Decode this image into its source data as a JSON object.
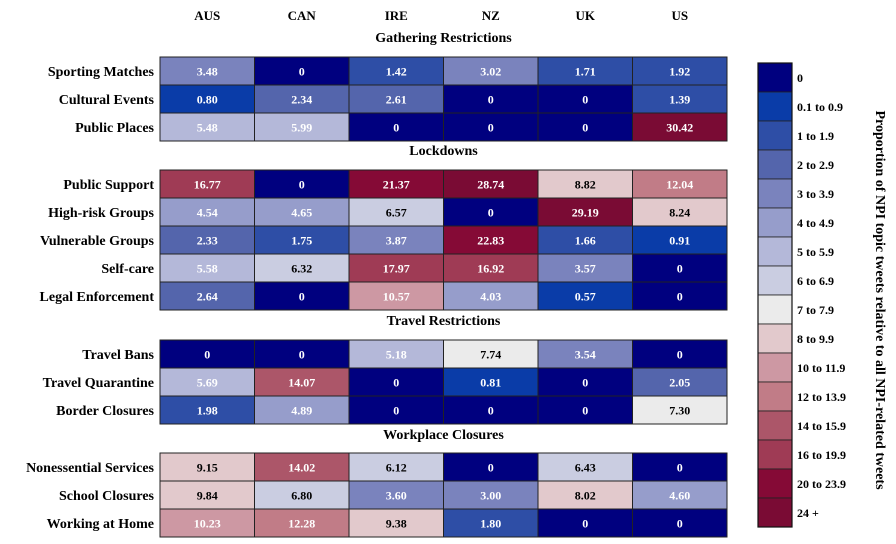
{
  "chart_data": {
    "type": "heatmap",
    "columns": [
      "AUS",
      "CAN",
      "IRE",
      "NZ",
      "UK",
      "US"
    ],
    "groups": [
      {
        "title": "Gathering Restrictions",
        "rows": [
          {
            "label": "Sporting Matches",
            "values": [
              "3.48",
              "0",
              "1.42",
              "3.02",
              "1.71",
              "1.92"
            ]
          },
          {
            "label": "Cultural Events",
            "values": [
              "0.80",
              "2.34",
              "2.61",
              "0",
              "0",
              "1.39"
            ]
          },
          {
            "label": "Public Places",
            "values": [
              "5.48",
              "5.99",
              "0",
              "0",
              "0",
              "30.42"
            ]
          }
        ]
      },
      {
        "title": "Lockdowns",
        "rows": [
          {
            "label": "Public Support",
            "values": [
              "16.77",
              "0",
              "21.37",
              "28.74",
              "8.82",
              "12.04"
            ]
          },
          {
            "label": "High-risk Groups",
            "values": [
              "4.54",
              "4.65",
              "6.57",
              "0",
              "29.19",
              "8.24"
            ]
          },
          {
            "label": "Vulnerable Groups",
            "values": [
              "2.33",
              "1.75",
              "3.87",
              "22.83",
              "1.66",
              "0.91"
            ]
          },
          {
            "label": "Self-care",
            "values": [
              "5.58",
              "6.32",
              "17.97",
              "16.92",
              "3.57",
              "0"
            ]
          },
          {
            "label": "Legal Enforcement",
            "values": [
              "2.64",
              "0",
              "10.57",
              "4.03",
              "0.57",
              "0"
            ]
          }
        ]
      },
      {
        "title": "Travel Restrictions",
        "rows": [
          {
            "label": "Travel Bans",
            "values": [
              "0",
              "0",
              "5.18",
              "7.74",
              "3.54",
              "0"
            ]
          },
          {
            "label": "Travel Quarantine",
            "values": [
              "5.69",
              "14.07",
              "0",
              "0.81",
              "0",
              "2.05"
            ]
          },
          {
            "label": "Border Closures",
            "values": [
              "1.98",
              "4.89",
              "0",
              "0",
              "0",
              "7.30"
            ]
          }
        ]
      },
      {
        "title": "Workplace Closures",
        "rows": [
          {
            "label": "Nonessential Services",
            "values": [
              "9.15",
              "14.02",
              "6.12",
              "0",
              "6.43",
              "0"
            ]
          },
          {
            "label": "School Closures",
            "values": [
              "9.84",
              "6.80",
              "3.60",
              "3.00",
              "8.02",
              "4.60"
            ]
          },
          {
            "label": "Working at Home",
            "values": [
              "10.23",
              "12.28",
              "9.38",
              "1.80",
              "0",
              "0"
            ]
          }
        ]
      }
    ],
    "colorbar": {
      "title": "Proportion of NPI topic tweets relative to all NPI-related tweets",
      "bins": [
        {
          "label": "0",
          "min": 0,
          "max": 0,
          "color": "#00007f"
        },
        {
          "label": "0.1 to  0.9",
          "min": 0.1,
          "max": 0.99,
          "color": "#0a3ca8"
        },
        {
          "label": "1 to 1.9",
          "min": 1,
          "max": 1.99,
          "color": "#2e4ea6"
        },
        {
          "label": "2 to 2.9",
          "min": 2,
          "max": 2.99,
          "color": "#5465ac"
        },
        {
          "label": "3 to 3.9",
          "min": 3,
          "max": 3.99,
          "color": "#7a83bd"
        },
        {
          "label": "4 to 4.9",
          "min": 4,
          "max": 4.99,
          "color": "#969dcb"
        },
        {
          "label": "5 to 5.9",
          "min": 5,
          "max": 5.99,
          "color": "#b4b8d9"
        },
        {
          "label": "6 to 6.9",
          "min": 6,
          "max": 6.99,
          "color": "#cacde1"
        },
        {
          "label": "7 to 7.9",
          "min": 7,
          "max": 7.99,
          "color": "#ebebeb"
        },
        {
          "label": "8 to 9.9",
          "min": 8,
          "max": 9.99,
          "color": "#e2c9cc"
        },
        {
          "label": "10 to 11.9",
          "min": 10,
          "max": 11.99,
          "color": "#cd98a3"
        },
        {
          "label": "12 to 13.9",
          "min": 12,
          "max": 13.99,
          "color": "#c17c87"
        },
        {
          "label": "14 to 15.9",
          "min": 14,
          "max": 15.99,
          "color": "#ac5669"
        },
        {
          "label": "16 to 19.9",
          "min": 16,
          "max": 19.99,
          "color": "#9f3b55"
        },
        {
          "label": "20 to 23.9",
          "min": 20,
          "max": 23.99,
          "color": "#850a36"
        },
        {
          "label": "24 +",
          "min": 24,
          "max": 1000,
          "color": "#7a0b34"
        }
      ]
    }
  }
}
